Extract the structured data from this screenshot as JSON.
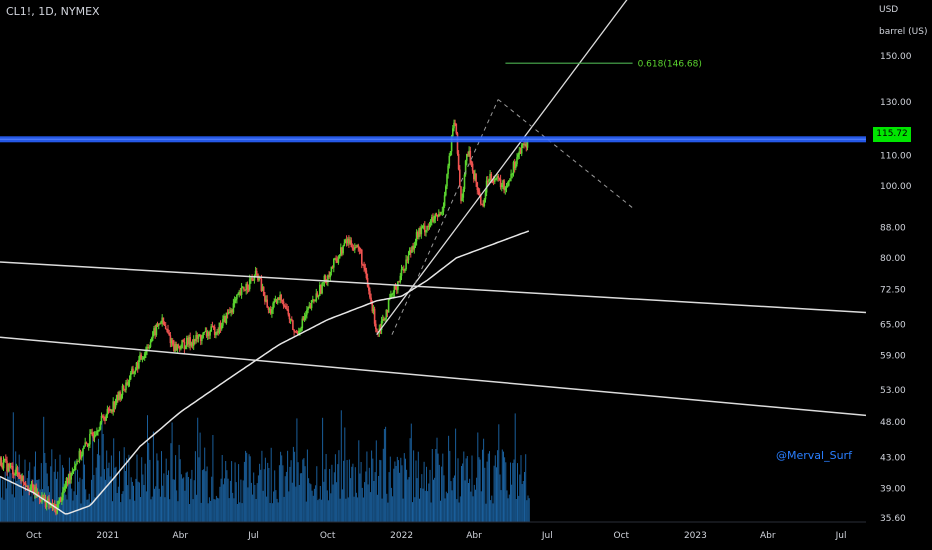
{
  "header": {
    "symbol": "CL1!, 1D, NYMEX"
  },
  "price_axis": {
    "unit_line1": "USD",
    "unit_line2": "barrel (US)"
  },
  "last_price": {
    "label": "115.72",
    "value": 115.72,
    "color": "#00e600"
  },
  "watermark": "@Merval_Surf",
  "colors": {
    "up": "#26a69a",
    "down": "#ef5350",
    "accent_green": "#5bd42f",
    "resistance": "#2962ff",
    "volume": "#1e6fb5",
    "moving_average": "#e6e6e6",
    "trendline": "#dcdcdc",
    "dashed": "#9a9a9a",
    "fib": "#4caf50"
  },
  "chart_data": {
    "type": "candlestick",
    "scale": "log",
    "y_ticks": [
      150.0,
      130.0,
      110.0,
      100.0,
      88.0,
      80.0,
      72.5,
      65.0,
      59.0,
      53.0,
      48.0,
      43.0,
      39.0,
      35.6
    ],
    "y_tick_labels": [
      "150.00",
      "130.00",
      "110.00",
      "100.00",
      "88.00",
      "80.00",
      "72.50",
      "65.00",
      "59.00",
      "53.00",
      "48.00",
      "43.00",
      "39.00",
      "35.60"
    ],
    "x_tick_labels": [
      "Oct",
      "2021",
      "Abr",
      "Jul",
      "Oct",
      "2022",
      "Abr",
      "Jul",
      "Oct",
      "2023",
      "Abr",
      "Jul"
    ],
    "x_tick_dates": [
      "2020-10-01",
      "2021-01-01",
      "2021-04-01",
      "2021-07-01",
      "2021-10-01",
      "2022-01-01",
      "2022-04-01",
      "2022-07-01",
      "2022-10-01",
      "2023-01-01",
      "2023-04-01",
      "2023-07-01"
    ],
    "close_path": [
      {
        "date": "2020-08-20",
        "close": 42.5
      },
      {
        "date": "2020-09-10",
        "close": 41.0
      },
      {
        "date": "2020-10-01",
        "close": 38.7
      },
      {
        "date": "2020-10-28",
        "close": 36.5
      },
      {
        "date": "2020-11-20",
        "close": 42.0
      },
      {
        "date": "2020-12-20",
        "close": 47.5
      },
      {
        "date": "2021-01-15",
        "close": 52.0
      },
      {
        "date": "2021-02-15",
        "close": 59.5
      },
      {
        "date": "2021-03-08",
        "close": 66.0
      },
      {
        "date": "2021-03-25",
        "close": 60.5
      },
      {
        "date": "2021-04-20",
        "close": 62.0
      },
      {
        "date": "2021-05-20",
        "close": 64.5
      },
      {
        "date": "2021-06-20",
        "close": 73.0
      },
      {
        "date": "2021-07-06",
        "close": 76.0
      },
      {
        "date": "2021-07-20",
        "close": 67.5
      },
      {
        "date": "2021-08-05",
        "close": 71.0
      },
      {
        "date": "2021-08-22",
        "close": 63.0
      },
      {
        "date": "2021-09-20",
        "close": 72.0
      },
      {
        "date": "2021-10-25",
        "close": 84.5
      },
      {
        "date": "2021-11-10",
        "close": 82.0
      },
      {
        "date": "2021-11-26",
        "close": 68.0
      },
      {
        "date": "2021-12-02",
        "close": 63.5
      },
      {
        "date": "2021-12-20",
        "close": 71.0
      },
      {
        "date": "2022-01-20",
        "close": 86.0
      },
      {
        "date": "2022-02-20",
        "close": 92.0
      },
      {
        "date": "2022-03-08",
        "close": 123.7
      },
      {
        "date": "2022-03-16",
        "close": 95.0
      },
      {
        "date": "2022-03-24",
        "close": 112.0
      },
      {
        "date": "2022-04-11",
        "close": 94.0
      },
      {
        "date": "2022-04-20",
        "close": 104.0
      },
      {
        "date": "2022-05-10",
        "close": 99.5
      },
      {
        "date": "2022-05-25",
        "close": 110.0
      },
      {
        "date": "2022-06-08",
        "close": 115.72
      }
    ],
    "volume_range": [
      0,
      1
    ],
    "moving_average": [
      {
        "date": "2020-08-20",
        "value": 40.5
      },
      {
        "date": "2020-10-01",
        "value": 38.5
      },
      {
        "date": "2020-11-10",
        "value": 36.0
      },
      {
        "date": "2020-12-10",
        "value": 37.0
      },
      {
        "date": "2021-01-10",
        "value": 40.5
      },
      {
        "date": "2021-02-10",
        "value": 44.5
      },
      {
        "date": "2021-04-01",
        "value": 49.5
      },
      {
        "date": "2021-06-01",
        "value": 55.0
      },
      {
        "date": "2021-08-01",
        "value": 61.0
      },
      {
        "date": "2021-10-01",
        "value": 66.0
      },
      {
        "date": "2021-12-01",
        "value": 70.0
      },
      {
        "date": "2022-01-01",
        "value": 71.0
      },
      {
        "date": "2022-02-01",
        "value": 74.5
      },
      {
        "date": "2022-03-10",
        "value": 80.0
      },
      {
        "date": "2022-05-01",
        "value": 84.0
      },
      {
        "date": "2022-06-08",
        "value": 87.0
      }
    ],
    "lines": {
      "resistance": {
        "price": 115.72
      },
      "fib": {
        "label": "0.618(146.68)",
        "price": 146.68,
        "from": "2022-05-10",
        "to": "2022-10-15"
      },
      "uptrend": {
        "from": {
          "date": "2021-12-01",
          "price": 63.0
        },
        "to": {
          "date": "2022-10-15",
          "price": 183.0
        }
      },
      "upper_channel": {
        "from": {
          "date": "2020-08-20",
          "price": 79.0
        },
        "to": {
          "date": "2023-08-01",
          "price": 67.5
        }
      },
      "lower_channel": {
        "from": {
          "date": "2020-08-20",
          "price": 62.5
        },
        "to": {
          "date": "2023-08-01",
          "price": 49.0
        }
      },
      "dashed_up": {
        "from": {
          "date": "2021-12-20",
          "price": 63.0
        },
        "to": {
          "date": "2022-05-01",
          "price": 131.0
        }
      },
      "dashed_down": {
        "from": {
          "date": "2022-05-01",
          "price": 131.0
        },
        "to": {
          "date": "2022-10-15",
          "price": 93.5
        }
      }
    }
  }
}
